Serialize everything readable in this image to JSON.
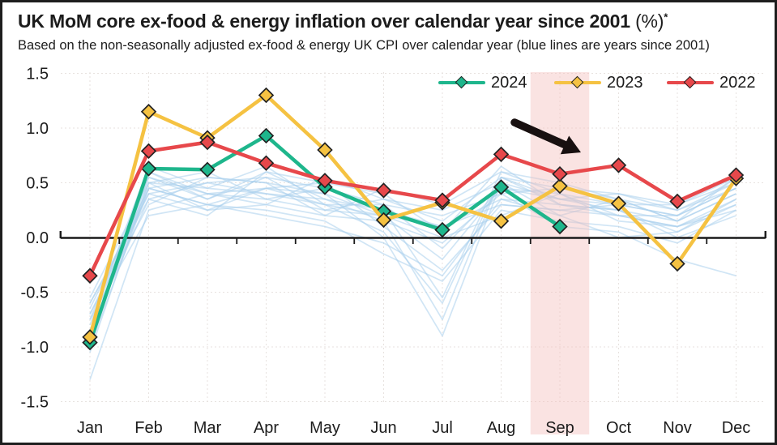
{
  "header": {
    "title": "UK MoM core ex-food & energy inflation over calendar year since 2001 ",
    "title_unit": "(%)",
    "title_footnote_marker": "*",
    "subtitle": "Based on the non-seasonally adjusted ex-food & energy UK CPI over calendar year (blue lines are years since 2001)"
  },
  "chart_data": {
    "type": "line",
    "categories": [
      "Jan",
      "Feb",
      "Mar",
      "Apr",
      "May",
      "Jun",
      "Jul",
      "Aug",
      "Sep",
      "Oct",
      "Nov",
      "Dec"
    ],
    "ylim": [
      -1.5,
      1.5
    ],
    "yticks": [
      1.5,
      1.0,
      0.5,
      0.0,
      -0.5,
      -1.0,
      -1.5
    ],
    "ytick_labels": [
      "1.5",
      "1.0",
      "0.5",
      "0.0",
      "-0.5",
      "-1.0",
      "-1.5"
    ],
    "grid": "dotted light horizontal and vertical gridlines",
    "legend_position": "top inside plot, horizontal",
    "marker": "diamond",
    "series": [
      {
        "name": "2024",
        "color": "#1EB68C",
        "values": [
          -0.96,
          0.63,
          0.62,
          0.93,
          0.46,
          0.24,
          0.07,
          0.46,
          0.1,
          null,
          null,
          null
        ]
      },
      {
        "name": "2023",
        "color": "#F5C242",
        "values": [
          -0.91,
          1.15,
          0.91,
          1.3,
          0.8,
          0.16,
          0.32,
          0.15,
          0.47,
          0.31,
          -0.24,
          0.54
        ]
      },
      {
        "name": "2022",
        "color": "#E7484B",
        "values": [
          -0.35,
          0.79,
          0.87,
          0.68,
          0.52,
          0.43,
          0.34,
          0.76,
          0.58,
          0.66,
          0.33,
          0.57
        ]
      }
    ],
    "background_series": {
      "label": "years since 2001",
      "color": "#A9CFEC",
      "lines": [
        [
          -0.65,
          0.45,
          0.3,
          0.45,
          0.3,
          0.2,
          0.1,
          0.35,
          0.3,
          0.25,
          0.15,
          0.4
        ],
        [
          -0.75,
          0.55,
          0.4,
          0.35,
          0.45,
          0.3,
          -0.1,
          0.45,
          0.35,
          0.3,
          0.2,
          0.45
        ],
        [
          -0.85,
          0.35,
          0.5,
          0.55,
          0.25,
          0.35,
          0.15,
          0.55,
          0.45,
          0.35,
          0.25,
          0.5
        ],
        [
          -0.95,
          0.6,
          0.35,
          0.6,
          0.5,
          0.1,
          -0.3,
          0.3,
          0.25,
          0.2,
          0.1,
          0.35
        ],
        [
          -1.05,
          0.5,
          0.45,
          0.4,
          0.35,
          0.25,
          -0.55,
          0.6,
          0.4,
          0.3,
          0.3,
          0.55
        ],
        [
          -0.6,
          0.4,
          0.25,
          0.3,
          0.2,
          0.15,
          -0.75,
          0.55,
          0.35,
          0.25,
          0.05,
          0.3
        ],
        [
          -0.7,
          0.3,
          0.55,
          0.5,
          0.4,
          0.0,
          -0.9,
          0.5,
          0.2,
          0.35,
          0.15,
          0.4
        ],
        [
          -0.8,
          0.65,
          0.45,
          0.65,
          0.3,
          0.3,
          0.2,
          0.4,
          0.45,
          0.4,
          0.3,
          0.5
        ],
        [
          -0.9,
          0.45,
          0.3,
          0.25,
          0.15,
          -0.15,
          -0.4,
          0.25,
          0.15,
          0.1,
          -0.05,
          0.25
        ],
        [
          -1.3,
          0.25,
          0.4,
          0.45,
          0.5,
          0.4,
          0.05,
          0.65,
          0.3,
          0.2,
          0.2,
          0.45
        ],
        [
          -0.55,
          0.5,
          0.6,
          0.35,
          0.25,
          0.2,
          -0.2,
          0.45,
          0.4,
          0.15,
          0.1,
          0.3
        ],
        [
          -0.95,
          0.55,
          0.35,
          0.55,
          0.45,
          0.25,
          0.1,
          0.3,
          0.25,
          0.3,
          0.2,
          0.55
        ],
        [
          -0.7,
          0.4,
          0.5,
          0.4,
          0.3,
          0.05,
          -0.6,
          0.55,
          0.3,
          0.25,
          0.0,
          0.2
        ],
        [
          -0.85,
          0.6,
          0.4,
          0.3,
          0.55,
          0.35,
          0.25,
          0.5,
          0.35,
          0.4,
          0.25,
          0.45
        ],
        [
          -0.6,
          0.35,
          0.2,
          0.6,
          0.35,
          0.15,
          -0.05,
          0.4,
          0.1,
          0.05,
          -0.2,
          -0.35
        ],
        [
          -1.0,
          0.45,
          0.55,
          0.5,
          0.2,
          0.45,
          0.3,
          0.6,
          0.5,
          0.35,
          0.15,
          0.55
        ],
        [
          -0.75,
          0.2,
          0.3,
          0.2,
          0.1,
          -0.05,
          -0.35,
          0.35,
          0.2,
          0.0,
          0.05,
          0.35
        ],
        [
          -0.9,
          0.5,
          0.25,
          0.45,
          0.4,
          0.2,
          0.0,
          0.2,
          0.4,
          0.2,
          0.1,
          0.25
        ]
      ]
    },
    "highlight_band": {
      "category": "Sep",
      "color": "rgba(243,192,190,0.45)"
    },
    "annotation": {
      "type": "arrow",
      "color": "#181010",
      "points_to": "Sep"
    }
  }
}
